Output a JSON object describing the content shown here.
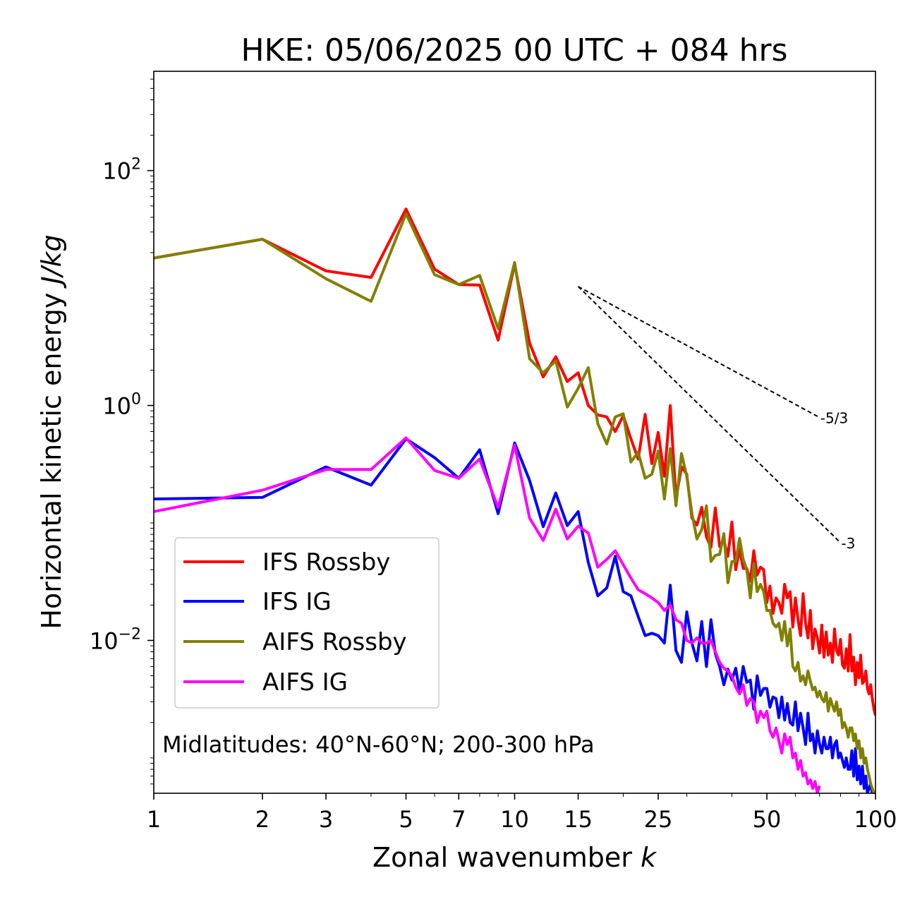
{
  "chart_data": {
    "type": "line",
    "title": "HKE: 05/06/2025 00 UTC + 084 hrs",
    "xlabel": "Zonal wavenumber",
    "xlabel_var": "k",
    "ylabel": "Horizontal kinetic energy",
    "ylabel_unit": "J/kg",
    "xscale": "log",
    "yscale": "log",
    "xlim": [
      1,
      100
    ],
    "ylim": [
      0.0005,
      700
    ],
    "x_ticks": [
      {
        "v": 1,
        "label": "1"
      },
      {
        "v": 2,
        "label": "2"
      },
      {
        "v": 3,
        "label": "3"
      },
      {
        "v": 5,
        "label": "5"
      },
      {
        "v": 7,
        "label": "7"
      },
      {
        "v": 10,
        "label": "10"
      },
      {
        "v": 15,
        "label": "15"
      },
      {
        "v": 25,
        "label": "25"
      },
      {
        "v": 50,
        "label": "50"
      },
      {
        "v": 100,
        "label": "100"
      }
    ],
    "y_ticks": [
      {
        "v": 100,
        "base": "10",
        "exp": "2"
      },
      {
        "v": 1,
        "base": "10",
        "exp": "0"
      },
      {
        "v": 0.01,
        "base": "10",
        "exp": "−2"
      }
    ],
    "annotation": "Midlatitudes: 40°N-60°N; 200-300 hPa",
    "reference_lines": [
      {
        "label": "-5/3",
        "slope": -1.6667,
        "x0": 15,
        "y0": 10.3,
        "x1": 70
      },
      {
        "label": "-3",
        "slope": -3,
        "x0": 15,
        "y0": 10.3,
        "x1": 80
      }
    ],
    "legend": {
      "position": "lower-left"
    },
    "series": [
      {
        "name": "IFS Rossby",
        "color": "#ff0000",
        "values": [
          18,
          26,
          14,
          12.3,
          47,
          14.5,
          10.7,
          10.6,
          3.6,
          16,
          3.4,
          1.75,
          2.6,
          1.6,
          1.9,
          1.0,
          0.83,
          0.8,
          0.6,
          0.82,
          0.52,
          0.35,
          0.84,
          0.32,
          0.59,
          0.25,
          1.0,
          0.16,
          0.3,
          0.26,
          0.11,
          0.096,
          0.136,
          0.076,
          0.062,
          0.134,
          0.063,
          0.071,
          0.052,
          0.102,
          0.04,
          0.06,
          0.041,
          0.041,
          0.032,
          0.058,
          0.036,
          0.042,
          0.04,
          0.021,
          0.029,
          0.017,
          0.023,
          0.021,
          0.017,
          0.03,
          0.023,
          0.026,
          0.013,
          0.023,
          0.015,
          0.011,
          0.025,
          0.014,
          0.0105,
          0.018,
          0.0085,
          0.0125,
          0.0105,
          0.0078,
          0.0135,
          0.0072,
          0.0118,
          0.0075,
          0.0095,
          0.0065,
          0.0125,
          0.0082,
          0.0075,
          0.0102,
          0.0062,
          0.0058,
          0.0085,
          0.0055,
          0.0112,
          0.0055,
          0.0072,
          0.0042,
          0.0065,
          0.0048,
          0.0075,
          0.0043,
          0.0045,
          0.0055,
          0.0039,
          0.0035,
          0.0042,
          0.0032,
          0.0026,
          0.0023
        ]
      },
      {
        "name": "IFS IG",
        "color": "#0000ff",
        "values": [
          0.16,
          0.165,
          0.3,
          0.21,
          0.52,
          0.36,
          0.24,
          0.42,
          0.12,
          0.48,
          0.23,
          0.093,
          0.18,
          0.095,
          0.125,
          0.046,
          0.024,
          0.028,
          0.052,
          0.026,
          0.024,
          0.016,
          0.011,
          0.0115,
          0.011,
          0.0095,
          0.0295,
          0.0082,
          0.0065,
          0.0175,
          0.0095,
          0.0067,
          0.0145,
          0.006,
          0.015,
          0.0077,
          0.006,
          0.0042,
          0.0057,
          0.0046,
          0.0058,
          0.0037,
          0.006,
          0.0044,
          0.0046,
          0.0026,
          0.005,
          0.0034,
          0.0039,
          0.0039,
          0.0027,
          0.0033,
          0.0032,
          0.0022,
          0.0033,
          0.0021,
          0.0029,
          0.002,
          0.0019,
          0.003,
          0.0017,
          0.0024,
          0.0018,
          0.0013,
          0.0024,
          0.0014,
          0.0016,
          0.0011,
          0.0017,
          0.0013,
          0.0011,
          0.0015,
          0.0012,
          0.0012,
          0.0015,
          0.001,
          0.0013,
          0.0014,
          0.001,
          0.0011,
          0.00095,
          0.00083,
          0.001,
          0.0008,
          0.0008,
          0.00115,
          0.0007,
          0.0012,
          0.00065,
          0.00085,
          0.0006,
          0.00085,
          0.00055,
          0.0007,
          0.0005,
          0.00055,
          0.0006,
          0.0005,
          0.0005,
          0.0005
        ]
      },
      {
        "name": "AIFS Rossby",
        "color": "#808000",
        "values": [
          18,
          26,
          12,
          7.7,
          43,
          13,
          10.7,
          12.8,
          4.5,
          16.5,
          2.5,
          1.9,
          2.4,
          0.97,
          1.4,
          2.1,
          0.7,
          0.47,
          0.8,
          0.85,
          0.33,
          0.4,
          0.24,
          0.26,
          0.41,
          0.16,
          0.43,
          0.14,
          0.39,
          0.25,
          0.12,
          0.073,
          0.088,
          0.14,
          0.047,
          0.053,
          0.054,
          0.081,
          0.031,
          0.047,
          0.047,
          0.074,
          0.049,
          0.04,
          0.023,
          0.045,
          0.026,
          0.03,
          0.026,
          0.018,
          0.018,
          0.014,
          0.013,
          0.014,
          0.01,
          0.0145,
          0.009,
          0.0125,
          0.006,
          0.0055,
          0.0065,
          0.0045,
          0.005,
          0.0042,
          0.0055,
          0.0045,
          0.0038,
          0.004,
          0.0033,
          0.0037,
          0.0032,
          0.003,
          0.0036,
          0.0025,
          0.0032,
          0.0028,
          0.0025,
          0.003,
          0.0023,
          0.0026,
          0.0018,
          0.002,
          0.0018,
          0.0015,
          0.0018,
          0.0018,
          0.0014,
          0.0016,
          0.0012,
          0.0014,
          0.001,
          0.0012,
          0.0009,
          0.001,
          0.0008,
          0.0007,
          0.0006,
          0.00055,
          0.0005,
          0.0005
        ]
      },
      {
        "name": "AIFS IG",
        "color": "#ff00ff",
        "values": [
          0.125,
          0.19,
          0.285,
          0.285,
          0.53,
          0.28,
          0.24,
          0.35,
          0.135,
          0.46,
          0.11,
          0.071,
          0.131,
          0.073,
          0.094,
          0.082,
          0.042,
          0.049,
          0.058,
          0.044,
          0.034,
          0.027,
          0.025,
          0.023,
          0.021,
          0.018,
          0.02,
          0.015,
          0.014,
          0.01,
          0.0095,
          0.0105,
          0.0095,
          0.0095,
          0.01,
          0.008,
          0.0065,
          0.0058,
          0.0055,
          0.005,
          0.004,
          0.0035,
          0.0042,
          0.0028,
          0.0032,
          0.003,
          0.002,
          0.0025,
          0.0022,
          0.0025,
          0.0017,
          0.0015,
          0.0018,
          0.0014,
          0.0011,
          0.0016,
          0.0013,
          0.0015,
          0.001,
          0.0011,
          0.0008,
          0.00095,
          0.0007,
          0.00075,
          0.0006,
          0.00065,
          0.00055,
          0.00063,
          0.0005,
          0.00058
        ]
      }
    ]
  }
}
